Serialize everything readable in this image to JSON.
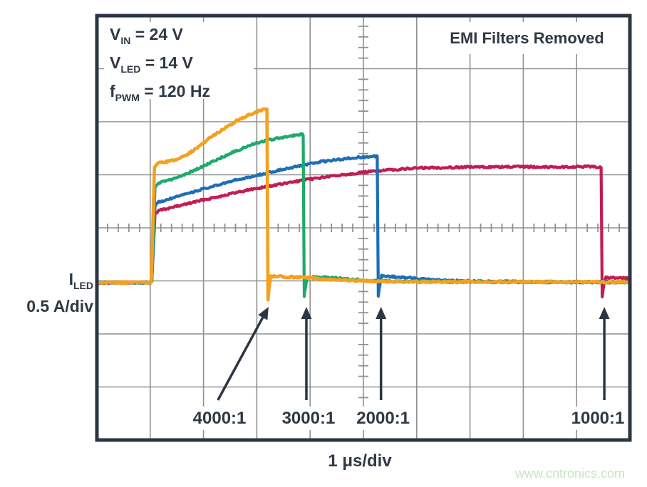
{
  "figure": {
    "conditions": [
      {
        "sym": "V",
        "sub": "IN",
        "rest": " = 24 V"
      },
      {
        "sym": "V",
        "sub": "LED",
        "rest": " = 14 V"
      },
      {
        "sym": "f",
        "sub": "PWM",
        "rest": " = 120 Hz"
      }
    ],
    "note": "EMI Filters Removed",
    "y_axis": {
      "sym": "I",
      "sub": "LED",
      "scale": "0.5 A/div"
    },
    "x_axis": {
      "scale": "1 μs/div"
    },
    "watermark": "www.cntronics.com"
  },
  "colors": {
    "border": "#2c3642",
    "grid": "#919191",
    "text": "#2e3944",
    "arrow": "#2c3642",
    "watermark": "#c6e6bf",
    "background": "#ffffff"
  },
  "chart_data": {
    "type": "line",
    "title": "LED current waveforms at different PWM dimming ratios, EMI filters removed",
    "xlabel": "1 μs/div",
    "ylabel": "ILED 0.5 A/div",
    "x_unit": "μs",
    "y_unit": "A",
    "x_range": [
      0,
      10
    ],
    "divisions": {
      "x": 10,
      "y": 8,
      "x_per_div": "1 μs",
      "y_per_div": "0.5 A",
      "zero_level_divs_below_center": 1
    },
    "grid": true,
    "legend_position": "none",
    "series": [
      {
        "name": "1000:1",
        "color": "#c11d52",
        "points": [
          [
            0,
            0
          ],
          [
            1.0,
            0
          ],
          [
            1.03,
            0.02
          ],
          [
            1.09,
            0.64
          ],
          [
            1.16,
            0.68
          ],
          [
            1.5,
            0.72
          ],
          [
            1.95,
            0.775
          ],
          [
            2.4,
            0.825
          ],
          [
            2.85,
            0.875
          ],
          [
            3.3,
            0.915
          ],
          [
            3.75,
            0.955
          ],
          [
            4.2,
            0.99
          ],
          [
            4.65,
            1.02
          ],
          [
            5.1,
            1.045
          ],
          [
            5.55,
            1.065
          ],
          [
            6.0,
            1.08
          ],
          [
            6.5,
            1.085
          ],
          [
            7.0,
            1.09
          ],
          [
            7.6,
            1.09
          ],
          [
            8.2,
            1.092
          ],
          [
            8.8,
            1.09
          ],
          [
            9.2,
            1.093
          ],
          [
            9.44,
            1.09
          ],
          [
            9.46,
            1.088
          ],
          [
            9.48,
            -0.13
          ],
          [
            9.51,
            -0.03
          ],
          [
            9.55,
            0.05
          ],
          [
            9.8,
            0.045
          ],
          [
            10,
            0.04
          ]
        ]
      },
      {
        "name": "2000:1",
        "color": "#1d6eb5",
        "points": [
          [
            0,
            0
          ],
          [
            1.0,
            0
          ],
          [
            1.03,
            0.02
          ],
          [
            1.09,
            0.72
          ],
          [
            1.16,
            0.76
          ],
          [
            1.45,
            0.8
          ],
          [
            1.8,
            0.855
          ],
          [
            2.2,
            0.91
          ],
          [
            2.6,
            0.965
          ],
          [
            3.0,
            1.01
          ],
          [
            3.4,
            1.06
          ],
          [
            3.8,
            1.1
          ],
          [
            4.2,
            1.14
          ],
          [
            4.6,
            1.165
          ],
          [
            4.9,
            1.18
          ],
          [
            5.1,
            1.185
          ],
          [
            5.24,
            1.19
          ],
          [
            5.26,
            1.185
          ],
          [
            5.28,
            -0.13
          ],
          [
            5.31,
            -0.02
          ],
          [
            5.34,
            0.065
          ],
          [
            5.6,
            0.055
          ],
          [
            6.0,
            0.04
          ],
          [
            6.6,
            0.02
          ],
          [
            7.4,
            0.01
          ],
          [
            10,
            0.004
          ]
        ]
      },
      {
        "name": "3000:1",
        "color": "#1fa96b",
        "points": [
          [
            0,
            0
          ],
          [
            1.0,
            0
          ],
          [
            1.03,
            0.02
          ],
          [
            1.09,
            0.9
          ],
          [
            1.16,
            0.94
          ],
          [
            1.4,
            0.97
          ],
          [
            1.7,
            1.03
          ],
          [
            2.0,
            1.1
          ],
          [
            2.3,
            1.17
          ],
          [
            2.6,
            1.24
          ],
          [
            2.9,
            1.3
          ],
          [
            3.2,
            1.345
          ],
          [
            3.5,
            1.37
          ],
          [
            3.7,
            1.385
          ],
          [
            3.82,
            1.4
          ],
          [
            3.87,
            1.395
          ],
          [
            3.89,
            -0.13
          ],
          [
            3.92,
            -0.02
          ],
          [
            3.95,
            0.055
          ],
          [
            4.3,
            0.05
          ],
          [
            4.8,
            0.03
          ],
          [
            5.5,
            0.015
          ],
          [
            6.5,
            0.008
          ],
          [
            10,
            0.004
          ]
        ]
      },
      {
        "name": "4000:1",
        "color": "#f5a01e",
        "points": [
          [
            0,
            0
          ],
          [
            1.0,
            0
          ],
          [
            1.02,
            0.02
          ],
          [
            1.08,
            1.08
          ],
          [
            1.14,
            1.13
          ],
          [
            1.3,
            1.14
          ],
          [
            1.5,
            1.16
          ],
          [
            1.7,
            1.21
          ],
          [
            1.9,
            1.28
          ],
          [
            2.1,
            1.36
          ],
          [
            2.35,
            1.44
          ],
          [
            2.6,
            1.52
          ],
          [
            2.85,
            1.58
          ],
          [
            3.05,
            1.62
          ],
          [
            3.17,
            1.635
          ],
          [
            3.19,
            1.63
          ],
          [
            3.21,
            -0.17
          ],
          [
            3.23,
            -0.05
          ],
          [
            3.26,
            0.06
          ],
          [
            3.5,
            0.055
          ],
          [
            3.9,
            0.05
          ],
          [
            4.4,
            0.03
          ],
          [
            5.0,
            0.015
          ],
          [
            6.0,
            0.008
          ],
          [
            10,
            0.005
          ]
        ]
      }
    ],
    "markers": [
      {
        "label": "4000:1",
        "label_center_us": 2.3,
        "arrow_tail_us": 2.27,
        "arrow_tip_us": 3.22
      },
      {
        "label": "3000:1",
        "label_center_us": 3.97,
        "arrow_tail_us": 3.93,
        "arrow_tip_us": 3.93
      },
      {
        "label": "2000:1",
        "label_center_us": 5.37,
        "arrow_tail_us": 5.33,
        "arrow_tip_us": 5.33
      },
      {
        "label": "1000:1",
        "label_center_us": 9.47,
        "arrow_tail_us": 9.52,
        "arrow_tip_us": 9.52
      }
    ]
  }
}
